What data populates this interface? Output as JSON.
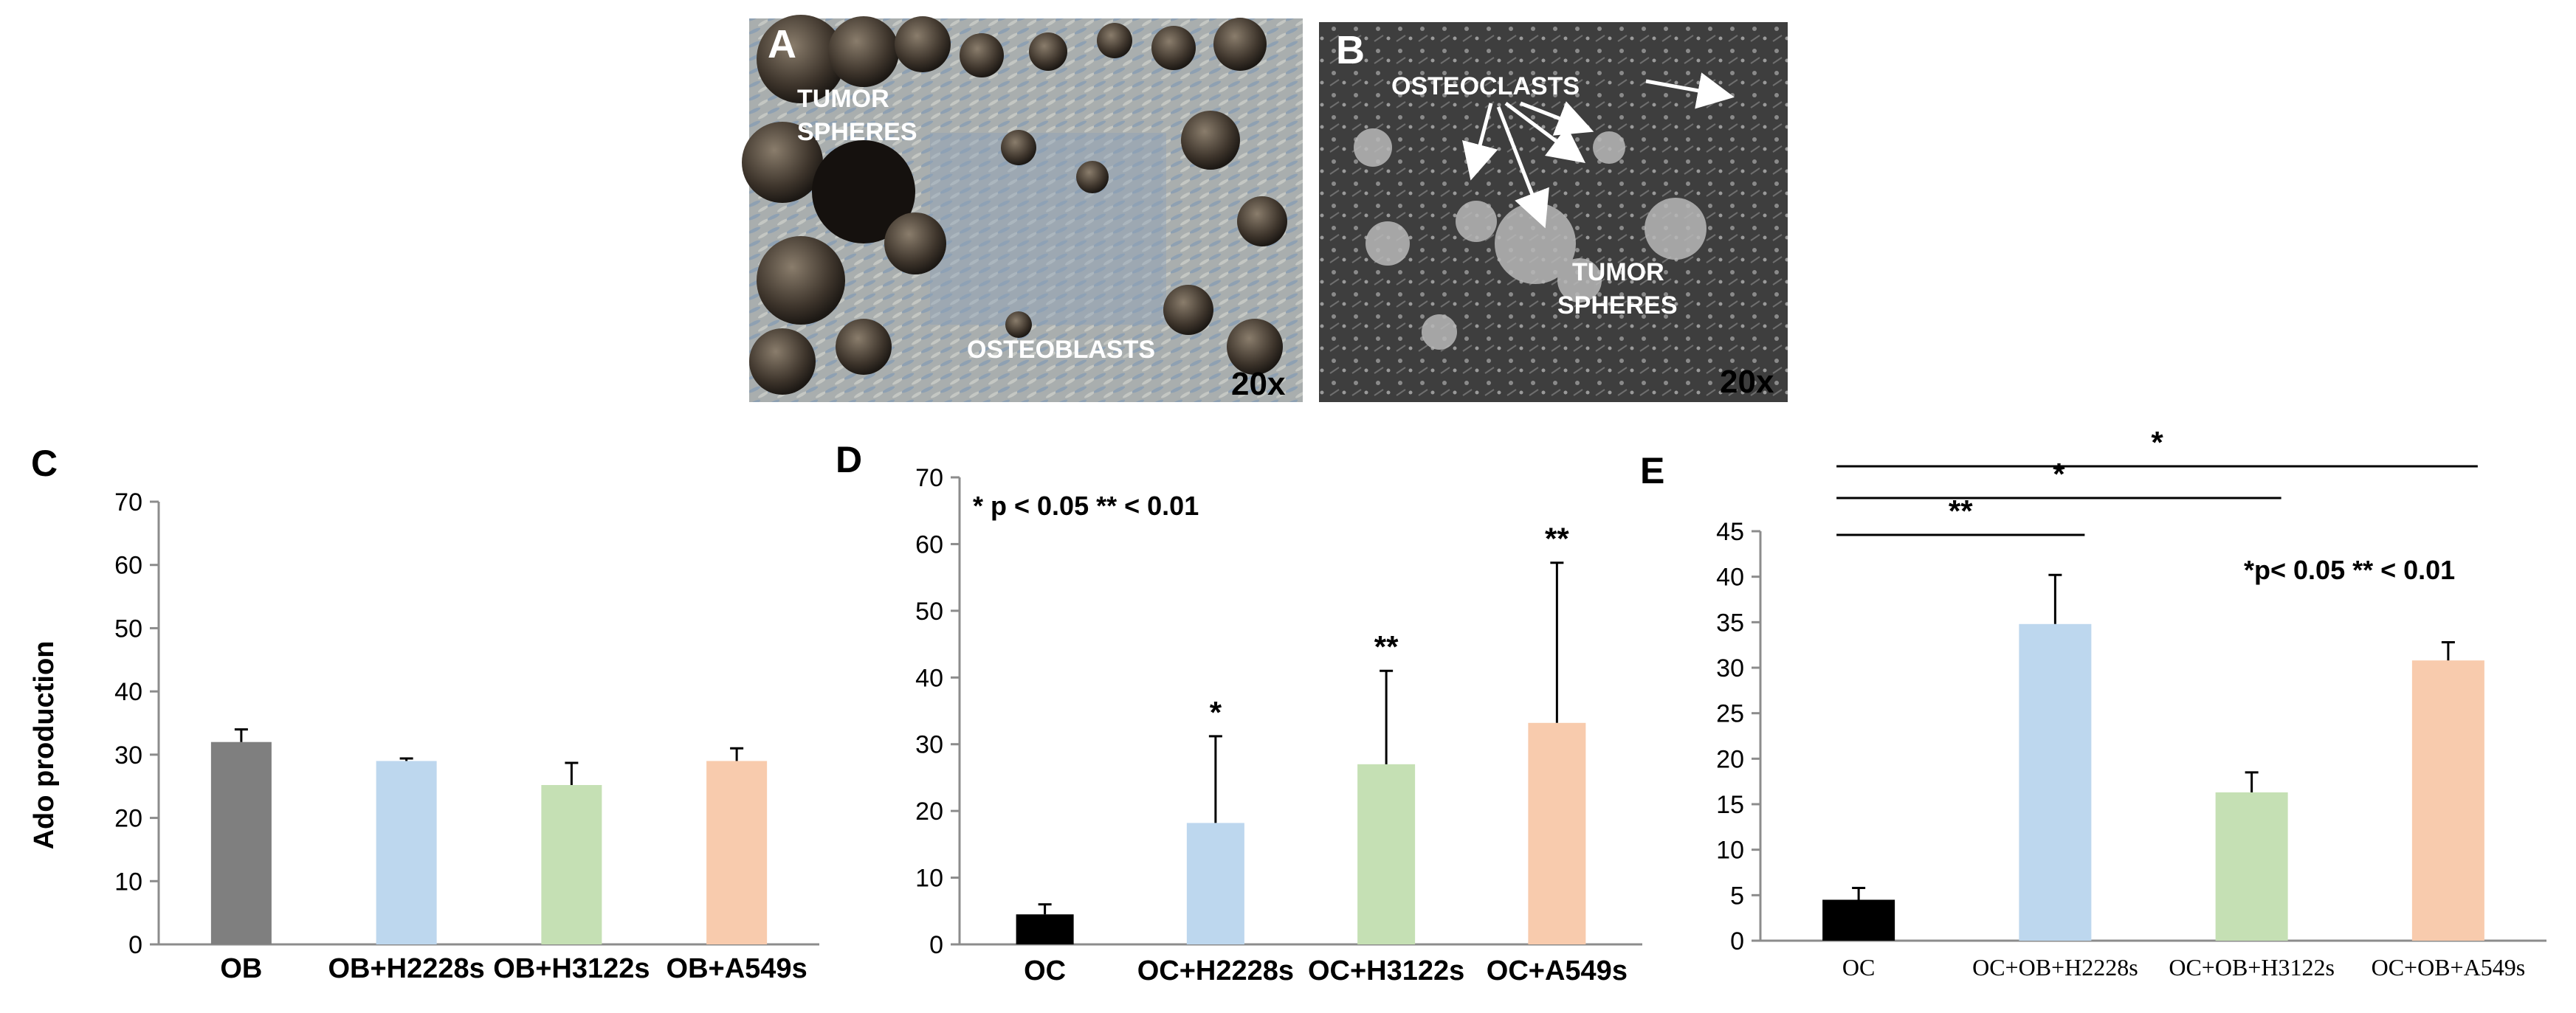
{
  "photos": [
    {
      "letter": "A",
      "labels": [
        "TUMOR",
        "SPHERES",
        "OSTEOBLASTS"
      ],
      "magnification": "20x"
    },
    {
      "letter": "B",
      "labels": [
        "OSTEOCLASTS",
        "TUMOR",
        "SPHERES"
      ],
      "magnification": "20x"
    }
  ],
  "chart_data": [
    {
      "type": "bar",
      "panel": "C",
      "ylabel": "Ado production",
      "ylim": [
        0,
        70
      ],
      "yticks": [
        0,
        10,
        20,
        30,
        40,
        50,
        60,
        70
      ],
      "categories": [
        "OB",
        "OB+H2228s",
        "OB+H3122s",
        "OB+A549s"
      ],
      "values": [
        32,
        29,
        25.2,
        29
      ],
      "errors": [
        2,
        0.4,
        3.5,
        2
      ],
      "colors": [
        "#7f7f7f",
        "#bdd7ee",
        "#c5e0b4",
        "#f8cbad"
      ],
      "significance": [
        "",
        "",
        "",
        ""
      ],
      "note": ""
    },
    {
      "type": "bar",
      "panel": "D",
      "ylabel": "",
      "ylim": [
        0,
        70
      ],
      "yticks": [
        0,
        10,
        20,
        30,
        40,
        50,
        60,
        70
      ],
      "categories": [
        "OC",
        "OC+H2228s",
        "OC+H3122s",
        "OC+A549s"
      ],
      "values": [
        4.5,
        18.2,
        27,
        33.2
      ],
      "errors": [
        1.5,
        13,
        14,
        24
      ],
      "colors": [
        "#000000",
        "#bdd7ee",
        "#c5e0b4",
        "#f8cbad"
      ],
      "significance": [
        "",
        "*",
        "**",
        "**"
      ],
      "note": "* p < 0.05 ** < 0.01"
    },
    {
      "type": "bar",
      "panel": "E",
      "ylabel": "",
      "ylim": [
        0,
        45
      ],
      "yticks": [
        0,
        5,
        10,
        15,
        20,
        25,
        30,
        35,
        40,
        45
      ],
      "categories": [
        "OC",
        "OC+OB+H2228s",
        "OC+OB+H3122s",
        "OC+OB+A549s"
      ],
      "values": [
        4.5,
        34.8,
        16.3,
        30.8
      ],
      "errors": [
        1.3,
        5.4,
        2.2,
        2
      ],
      "colors": [
        "#000000",
        "#bdd7ee",
        "#c5e0b4",
        "#f8cbad"
      ],
      "significance": [
        "",
        "",
        "",
        ""
      ],
      "brackets": [
        {
          "from": "OC",
          "to": "OC+OB+H2228s",
          "label": "**"
        },
        {
          "from": "OC",
          "to": "OC+OB+H3122s",
          "label": "*"
        },
        {
          "from": "OC",
          "to": "OC+OB+A549s",
          "label": "*"
        }
      ],
      "note": "*p< 0.05 ** < 0.01"
    }
  ]
}
